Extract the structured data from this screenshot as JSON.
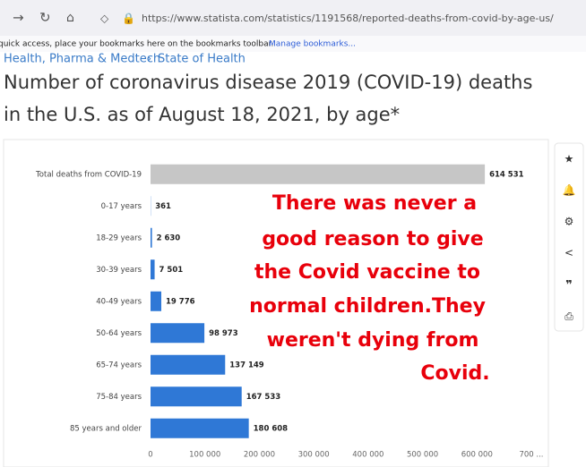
{
  "browser": {
    "url": "https://www.statista.com/statistics/1191568/reported-deaths-from-covid-by-age-us/",
    "bookmarks_text": "quick access, place your bookmarks here on the bookmarks toolbar.",
    "bookmarks_link": "Manage bookmarks..."
  },
  "breadcrumb": [
    "Health, Pharma & Medtech",
    "State of Health"
  ],
  "chart_data": {
    "type": "bar",
    "orientation": "horizontal",
    "title": [
      "Number of coronavirus disease 2019 (COVID-19) deaths",
      "in the U.S. as of August 18, 2021, by  age*"
    ],
    "categories": [
      "Total deaths from COVID-19",
      "0-17 years",
      "18-29 years",
      "30-39 years",
      "40-49 years",
      "50-64 years",
      "65-74 years",
      "75-84 years",
      "85 years and older"
    ],
    "values": [
      614531,
      361,
      2630,
      7501,
      19776,
      98973,
      137149,
      167533,
      180608
    ],
    "value_labels": [
      "614 531",
      "361",
      "2 630",
      "7 501",
      "19 776",
      "98 973",
      "137 149",
      "167 533",
      "180 608"
    ],
    "colors": [
      "#c6c6c6",
      "#2f78d6",
      "#2f78d6",
      "#2f78d6",
      "#2f78d6",
      "#2f78d6",
      "#2f78d6",
      "#2f78d6",
      "#2f78d6"
    ],
    "xlim": [
      0,
      700000
    ],
    "xticks": [
      0,
      {
        "value": 100000,
        "label": "100 000"
      },
      {
        "value": 200000,
        "label": "200 000"
      },
      {
        "value": 300000,
        "label": "300 000"
      },
      {
        "value": 400000,
        "label": "400 000"
      },
      {
        "value": 500000,
        "label": "500 000"
      },
      {
        "value": 600000,
        "label": "600 000"
      },
      {
        "value": 700000,
        "label": "700 ..."
      }
    ],
    "grid": false,
    "annotation": {
      "color": "#e8000b",
      "lines": [
        "There was never a",
        "good reason to give",
        "the Covid vaccine to",
        "normal children.They",
        "weren't dying from",
        "Covid."
      ]
    }
  }
}
